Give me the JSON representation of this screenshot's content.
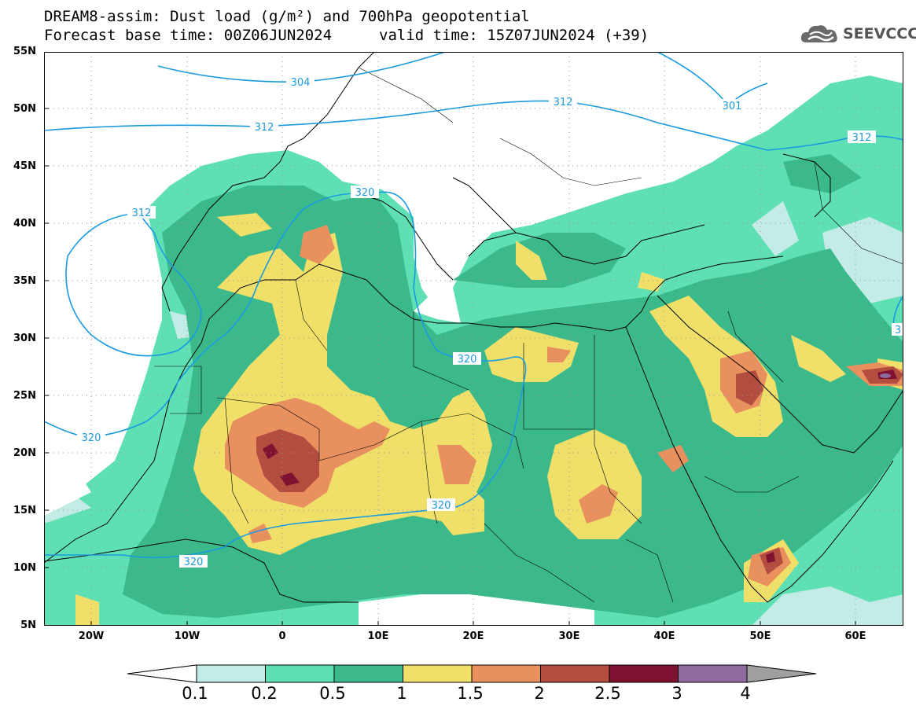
{
  "header": {
    "title_line1": "DREAM8-assim: Dust load (g/m²) and 700hPa geopotential",
    "title_line2": "Forecast base time: 00Z06JUN2024",
    "valid_time": "valid time: 15Z07JUN2024 (+39)"
  },
  "logo": {
    "text": "SEEVCCC",
    "icon": "cloud-icon"
  },
  "axes": {
    "latitudes": [
      "55N",
      "50N",
      "45N",
      "40N",
      "35N",
      "30N",
      "25N",
      "20N",
      "15N",
      "10N",
      "5N"
    ],
    "longitudes": [
      "20W",
      "10W",
      "0",
      "10E",
      "20E",
      "30E",
      "40E",
      "50E",
      "60E"
    ]
  },
  "contour_labels": [
    "304",
    "312",
    "312",
    "312",
    "301",
    "312",
    "320",
    "320",
    "320",
    "320",
    "320",
    "3"
  ],
  "colorbar": {
    "levels": [
      "0.1",
      "0.2",
      "0.5",
      "1",
      "1.5",
      "2",
      "2.5",
      "3",
      "4"
    ],
    "colors": [
      "#ffffff",
      "#c4ece6",
      "#5fe0b4",
      "#3cb98a",
      "#f0e06a",
      "#e8905e",
      "#b34d40",
      "#7e1230",
      "#8e6aa0",
      "#a0a0a0"
    ]
  }
}
